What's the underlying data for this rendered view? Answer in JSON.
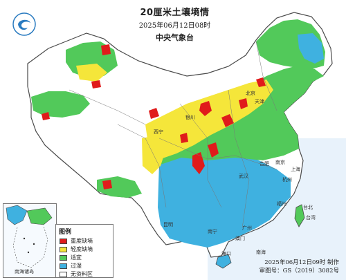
{
  "title": {
    "main": "20厘米土壤墒情",
    "time": "2025年06月12日08时",
    "org": "中央气象台"
  },
  "legend": {
    "title": "图例",
    "items": [
      {
        "label": "重度缺墒",
        "color": "#e01b1b"
      },
      {
        "label": "轻度缺墒",
        "color": "#f5e63a"
      },
      {
        "label": "适宜",
        "color": "#52c95a"
      },
      {
        "label": "过湿",
        "color": "#3fb1e0"
      },
      {
        "label": "无资料区",
        "color": "#ffffff"
      }
    ]
  },
  "inset": {
    "label": "南海诸岛"
  },
  "footer": {
    "made": "2025年06月12日09时 制作",
    "code": "审图号：GS（2019）3082号"
  },
  "places": {
    "beijing": "北京",
    "tianjin": "天津",
    "shanghai": "上海",
    "guangzhou": "广州",
    "macau": "澳门",
    "haikou": "海口",
    "taibei": "台北",
    "kunming": "昆明",
    "nanning": "南宁",
    "xining": "西宁",
    "yinchuan": "银川",
    "hefei": "合肥",
    "wuhan": "武汉",
    "nanjing": "南京",
    "hangzhou": "杭州",
    "fuzhou": "福州",
    "taiwan": "台湾",
    "south_china_sea": "南海"
  },
  "colors": {
    "water": "#cfe6f7",
    "border": "#4a4a4a",
    "no_data": "#ffffff",
    "dry_severe": "#e01b1b",
    "dry_light": "#f5e63a",
    "suitable": "#52c95a",
    "wet": "#3fb1e0"
  }
}
